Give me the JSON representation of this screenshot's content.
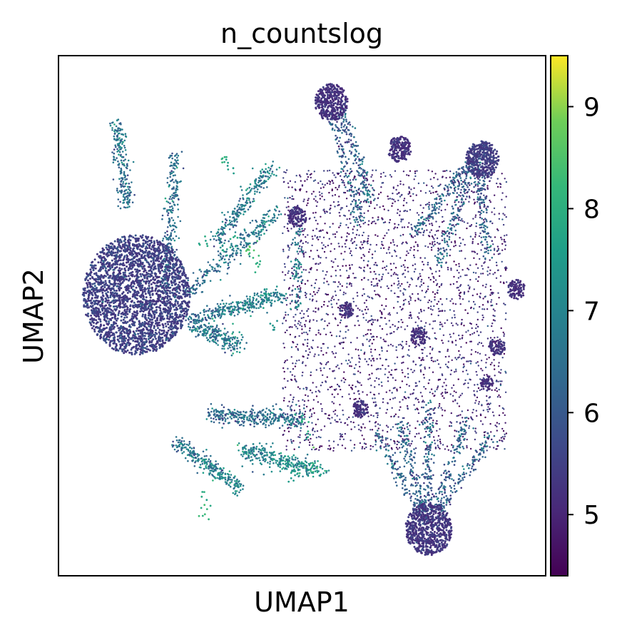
{
  "chart_data": {
    "type": "scatter",
    "title": "n_countslog",
    "xlabel": "UMAP1",
    "ylabel": "UMAP2",
    "xticks": [],
    "yticks": [],
    "grid": false,
    "colorbar": {
      "colormap": "viridis",
      "range": [
        4.4,
        9.5
      ],
      "ticks": [
        5,
        6,
        7,
        8,
        9
      ],
      "tick_labels": [
        "5",
        "6",
        "7",
        "8",
        "9"
      ],
      "placement": "right"
    },
    "xlim": [
      0,
      100
    ],
    "ylim": [
      0,
      100
    ],
    "clusters": [
      {
        "x": 16,
        "y": 54,
        "r": 11,
        "n": 2600,
        "value": 5.2,
        "spread": 0.4
      },
      {
        "x": 76,
        "y": 9,
        "r": 4.8,
        "n": 700,
        "value": 5.1,
        "spread": 0.3
      },
      {
        "x": 56,
        "y": 91,
        "r": 3.4,
        "n": 380,
        "value": 5.0,
        "spread": 0.3
      },
      {
        "x": 87,
        "y": 80,
        "r": 3.4,
        "n": 380,
        "value": 5.2,
        "spread": 0.3
      },
      {
        "x": 70,
        "y": 82,
        "r": 2.4,
        "n": 180,
        "value": 5.0,
        "spread": 0.3
      },
      {
        "x": 49,
        "y": 69,
        "r": 1.9,
        "n": 120,
        "value": 5.0,
        "spread": 0.3
      },
      {
        "x": 94,
        "y": 55,
        "r": 1.8,
        "n": 90,
        "value": 5.0,
        "spread": 0.3
      },
      {
        "x": 90,
        "y": 44,
        "r": 1.7,
        "n": 80,
        "value": 5.0,
        "spread": 0.3
      },
      {
        "x": 74,
        "y": 46,
        "r": 1.7,
        "n": 80,
        "value": 5.0,
        "spread": 0.3
      },
      {
        "x": 59,
        "y": 51,
        "r": 1.5,
        "n": 70,
        "value": 5.0,
        "spread": 0.3
      },
      {
        "x": 62,
        "y": 32,
        "r": 1.6,
        "n": 80,
        "value": 5.0,
        "spread": 0.3
      },
      {
        "x": 88,
        "y": 37,
        "r": 1.3,
        "n": 50,
        "value": 5.0,
        "spread": 0.3
      }
    ],
    "arms": [
      {
        "x1": 14,
        "y1": 71,
        "x2": 12,
        "y2": 87,
        "n": 220,
        "value": 6.4,
        "width": 1.2
      },
      {
        "x1": 22,
        "y1": 55,
        "x2": 24,
        "y2": 81,
        "n": 260,
        "value": 6.2,
        "width": 1.2
      },
      {
        "x1": 26,
        "y1": 54,
        "x2": 45,
        "y2": 70,
        "n": 260,
        "value": 6.4,
        "width": 1.5
      },
      {
        "x1": 30,
        "y1": 50,
        "x2": 46,
        "y2": 54,
        "n": 300,
        "value": 6.6,
        "width": 1.4
      },
      {
        "x1": 27,
        "y1": 49,
        "x2": 37,
        "y2": 44,
        "n": 260,
        "value": 6.5,
        "width": 1.6
      },
      {
        "x1": 31,
        "y1": 31,
        "x2": 50,
        "y2": 30,
        "n": 340,
        "value": 6.3,
        "width": 1.4
      },
      {
        "x1": 24,
        "y1": 26,
        "x2": 37,
        "y2": 17,
        "n": 280,
        "value": 6.6,
        "width": 1.2
      },
      {
        "x1": 38,
        "y1": 24,
        "x2": 54,
        "y2": 20,
        "n": 320,
        "value": 6.9,
        "width": 1.6
      },
      {
        "x1": 32,
        "y1": 64,
        "x2": 44,
        "y2": 79,
        "n": 240,
        "value": 6.5,
        "width": 1.3
      },
      {
        "x1": 49,
        "y1": 68,
        "x2": 49,
        "y2": 51,
        "n": 90,
        "value": 6.6,
        "width": 0.8
      },
      {
        "x1": 58,
        "y1": 90,
        "x2": 64,
        "y2": 72,
        "n": 160,
        "value": 6.0,
        "width": 1.0
      },
      {
        "x1": 56,
        "y1": 89,
        "x2": 62,
        "y2": 68,
        "n": 140,
        "value": 6.0,
        "width": 1.0
      },
      {
        "x1": 85,
        "y1": 80,
        "x2": 73,
        "y2": 66,
        "n": 160,
        "value": 6.0,
        "width": 1.0
      },
      {
        "x1": 85,
        "y1": 79,
        "x2": 78,
        "y2": 60,
        "n": 140,
        "value": 6.0,
        "width": 1.0
      },
      {
        "x1": 86,
        "y1": 79,
        "x2": 88,
        "y2": 62,
        "n": 130,
        "value": 6.0,
        "width": 1.0
      },
      {
        "x1": 75,
        "y1": 12,
        "x2": 70,
        "y2": 30,
        "n": 140,
        "value": 6.0,
        "width": 1.0
      },
      {
        "x1": 76,
        "y1": 12,
        "x2": 76,
        "y2": 33,
        "n": 140,
        "value": 6.0,
        "width": 1.0
      },
      {
        "x1": 77,
        "y1": 12,
        "x2": 84,
        "y2": 30,
        "n": 130,
        "value": 6.0,
        "width": 1.0
      },
      {
        "x1": 78,
        "y1": 12,
        "x2": 89,
        "y2": 27,
        "n": 120,
        "value": 6.0,
        "width": 1.0
      },
      {
        "x1": 74,
        "y1": 12,
        "x2": 65,
        "y2": 28,
        "n": 120,
        "value": 6.0,
        "width": 1.0
      }
    ],
    "background": {
      "xmin": 46,
      "xmax": 92,
      "ymin": 24,
      "ymax": 78,
      "n": 2600,
      "value": 5.1,
      "spread": 0.5
    },
    "bright_points": [
      {
        "x": 39,
        "y": 63,
        "value": 8.8
      },
      {
        "x": 40,
        "y": 62,
        "value": 8.6
      },
      {
        "x": 36,
        "y": 64,
        "value": 8.0
      },
      {
        "x": 41,
        "y": 60,
        "value": 8.2
      },
      {
        "x": 30,
        "y": 64,
        "value": 8.0
      },
      {
        "x": 34,
        "y": 62,
        "value": 7.8
      },
      {
        "x": 50,
        "y": 30,
        "value": 8.2
      },
      {
        "x": 51,
        "y": 28,
        "value": 8.0
      },
      {
        "x": 30,
        "y": 12,
        "value": 8.4
      },
      {
        "x": 30,
        "y": 15,
        "value": 8.0
      },
      {
        "x": 35,
        "y": 79,
        "value": 7.8
      },
      {
        "x": 34,
        "y": 80,
        "value": 8.2
      },
      {
        "x": 42,
        "y": 54,
        "value": 7.8
      },
      {
        "x": 44,
        "y": 48,
        "value": 7.6
      },
      {
        "x": 47,
        "y": 22,
        "value": 7.8
      },
      {
        "x": 48,
        "y": 20,
        "value": 7.6
      }
    ]
  }
}
